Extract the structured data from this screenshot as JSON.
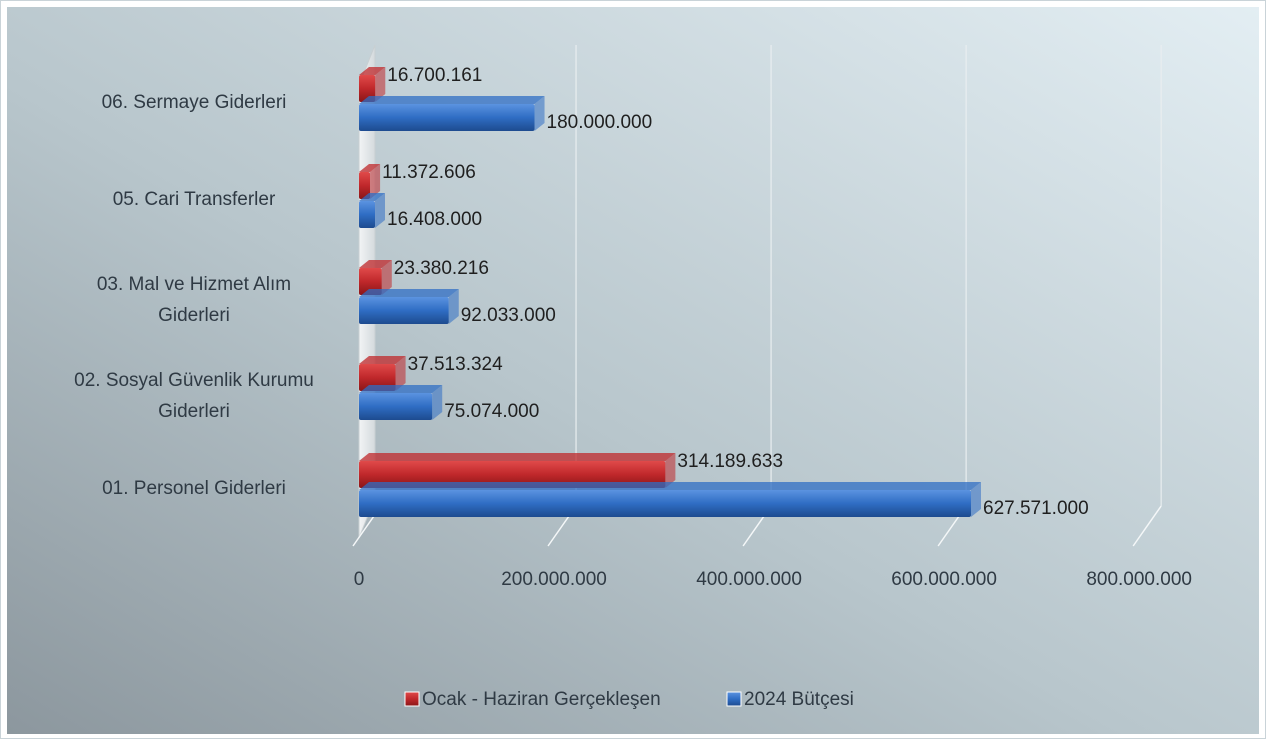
{
  "chart_data": {
    "type": "bar",
    "orientation": "horizontal",
    "categories": [
      "06. Sermaye Giderleri",
      "05. Cari Transferler",
      "03. Mal ve Hizmet Alım Giderleri",
      "02. Sosyal Güvenlik Kurumu Giderleri",
      "01. Personel Giderleri"
    ],
    "category_lines": [
      [
        "06. Sermaye Giderleri"
      ],
      [
        "05. Cari Transferler"
      ],
      [
        "03. Mal ve Hizmet Alım",
        "Giderleri"
      ],
      [
        "02. Sosyal Güvenlik Kurumu",
        "Giderleri"
      ],
      [
        "01. Personel Giderleri"
      ]
    ],
    "series": [
      {
        "name": "Ocak - Haziran Gerçekleşen",
        "color": "#c0282b",
        "values": [
          16700161,
          11372606,
          23380216,
          37513324,
          314189633
        ],
        "labels": [
          "16.700.161",
          "11.372.606",
          "23.380.216",
          "37.513.324",
          "314.189.633"
        ]
      },
      {
        "name": "2024 Bütçesi",
        "color": "#2f6dc4",
        "values": [
          180000000,
          16408000,
          92033000,
          75074000,
          627571000
        ],
        "labels": [
          "180.000.000",
          "16.408.000",
          "92.033.000",
          "75.074.000",
          "627.571.000"
        ]
      }
    ],
    "xlim": [
      0,
      800000000
    ],
    "x_ticks": [
      0,
      200000000,
      400000000,
      600000000,
      800000000
    ],
    "x_tick_labels": [
      "0",
      "200.000.000",
      "400.000.000",
      "600.000.000",
      "800.000.000"
    ],
    "grid": true,
    "legend_position": "bottom",
    "title": "",
    "xlabel": "",
    "ylabel": ""
  }
}
